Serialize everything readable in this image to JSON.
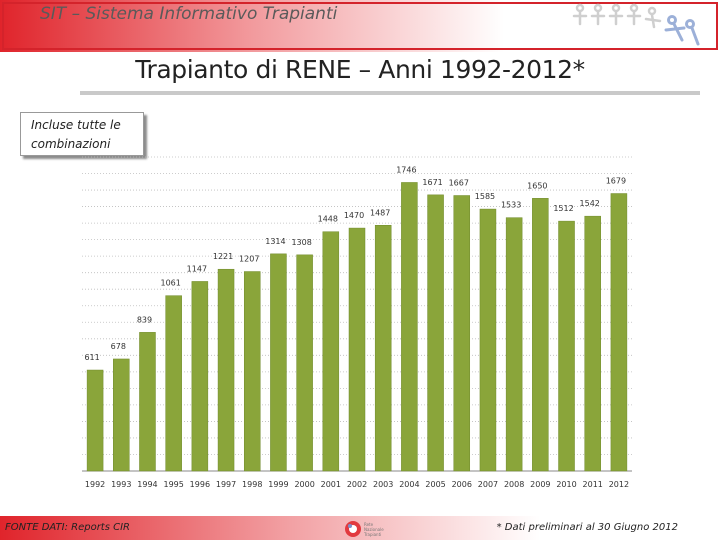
{
  "header": {
    "system_title": "SIT – Sistema Informativo Trapianti"
  },
  "page_title": "Trapianto di RENE – Anni 1992-2012*",
  "note": {
    "line1": "Incluse tutte le",
    "line2": "combinazioni"
  },
  "chart_data": {
    "type": "bar",
    "title": "",
    "xlabel": "",
    "ylabel": "",
    "categories": [
      "1992",
      "1993",
      "1994",
      "1995",
      "1996",
      "1997",
      "1998",
      "1999",
      "2000",
      "2001",
      "2002",
      "2003",
      "2004",
      "2005",
      "2006",
      "2007",
      "2008",
      "2009",
      "2010",
      "2011",
      "2012"
    ],
    "values": [
      611,
      678,
      839,
      1061,
      1147,
      1221,
      1207,
      1314,
      1308,
      1448,
      1470,
      1487,
      1746,
      1671,
      1667,
      1585,
      1533,
      1650,
      1512,
      1542,
      1679
    ],
    "ylim": [
      0,
      1900
    ],
    "grid": true,
    "bar_color": "#8aa53a",
    "legend": "none"
  },
  "footer": {
    "source": "FONTE DATI: Reports CIR",
    "note": "* Dati preliminari al 30 Giugno 2012",
    "logo_text": "Rete Nazionale Trapianti"
  }
}
